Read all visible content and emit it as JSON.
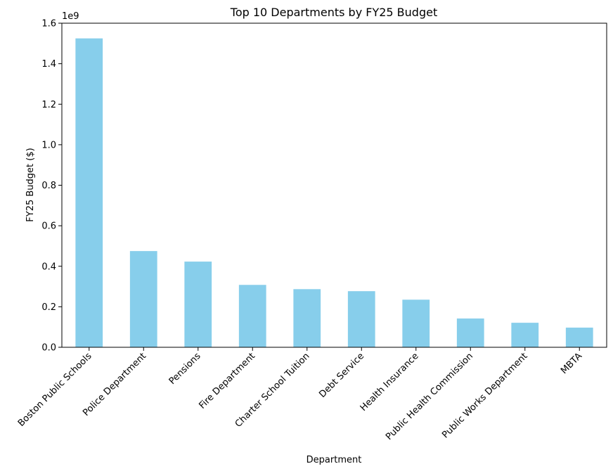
{
  "chart_data": {
    "type": "bar",
    "title": "Top 10 Departments by FY25 Budget",
    "xlabel": "Department",
    "ylabel": "FY25 Budget ($)",
    "y_offset_label": "1e9",
    "ylim": [
      0,
      1.6
    ],
    "yticks": [
      "0.0",
      "0.2",
      "0.4",
      "0.6",
      "0.8",
      "1.0",
      "1.2",
      "1.4",
      "1.6"
    ],
    "categories": [
      "Boston Public Schools",
      "Police Department",
      "Pensions",
      "Fire Department",
      "Charter School Tuition",
      "Debt Service",
      "Health Insurance",
      "Public Health Commission",
      "Public Works Department",
      "MBTA"
    ],
    "values": [
      1.525,
      0.475,
      0.423,
      0.308,
      0.287,
      0.277,
      0.235,
      0.142,
      0.121,
      0.097
    ],
    "bar_color": "#87ceeb",
    "grid": false
  }
}
